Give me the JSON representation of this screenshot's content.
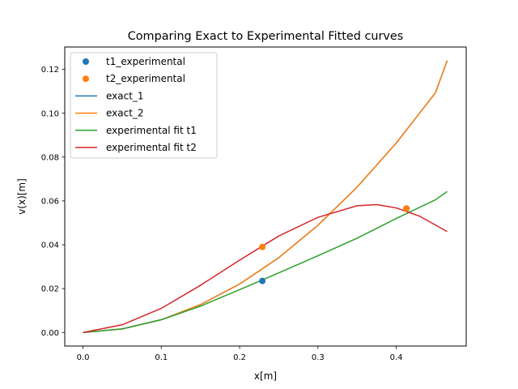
{
  "chart_data": {
    "type": "line",
    "title": "Comparing Exact to Experimental Fitted curves",
    "xlabel": "x[m]",
    "ylabel": "v(x)[m]",
    "xlim": [
      -0.0233,
      0.4893
    ],
    "ylim": [
      -0.0062,
      0.1302
    ],
    "xticks": [
      "0.0",
      "0.1",
      "0.2",
      "0.3",
      "0.4"
    ],
    "xtick_values": [
      0.0,
      0.1,
      0.2,
      0.3,
      0.4
    ],
    "yticks": [
      "0.00",
      "0.02",
      "0.04",
      "0.06",
      "0.08",
      "0.10",
      "0.12"
    ],
    "ytick_values": [
      0.0,
      0.02,
      0.04,
      0.06,
      0.08,
      0.1,
      0.12
    ],
    "grid": false,
    "legend_position": "top-left",
    "series": [
      {
        "name": "t1_experimental",
        "kind": "scatter",
        "color": "#1f77b4",
        "x": [
          0.229,
          0.413
        ],
        "y": [
          0.0235,
          0.0565
        ]
      },
      {
        "name": "t2_experimental",
        "kind": "scatter",
        "color": "#ff7f0e",
        "x": [
          0.229,
          0.413
        ],
        "y": [
          0.039,
          0.0565
        ]
      },
      {
        "name": "exact_1",
        "kind": "line",
        "color": "#1f77b4",
        "x": [
          0.0,
          0.05,
          0.1,
          0.15,
          0.2,
          0.25,
          0.3,
          0.35,
          0.4,
          0.45,
          0.465
        ],
        "y": [
          0.0,
          0.0016,
          0.0058,
          0.0127,
          0.0221,
          0.0341,
          0.0489,
          0.0663,
          0.0864,
          0.1093,
          0.124
        ]
      },
      {
        "name": "exact_2",
        "kind": "line",
        "color": "#ff7f0e",
        "x": [
          0.0,
          0.05,
          0.1,
          0.15,
          0.2,
          0.25,
          0.3,
          0.35,
          0.4,
          0.45,
          0.465
        ],
        "y": [
          0.0,
          0.0016,
          0.0058,
          0.0127,
          0.0221,
          0.0341,
          0.0489,
          0.0663,
          0.0864,
          0.1093,
          0.124
        ]
      },
      {
        "name": "experimental fit t1",
        "kind": "line",
        "color": "#2ca02c",
        "x": [
          0.0,
          0.05,
          0.1,
          0.15,
          0.2,
          0.25,
          0.3,
          0.35,
          0.4,
          0.45,
          0.465
        ],
        "y": [
          0.0,
          0.0016,
          0.0058,
          0.012,
          0.0195,
          0.0272,
          0.035,
          0.043,
          0.052,
          0.0605,
          0.0643
        ]
      },
      {
        "name": "experimental fit t2",
        "kind": "line",
        "color": "#d62728",
        "x": [
          0.0,
          0.05,
          0.1,
          0.15,
          0.2,
          0.25,
          0.3,
          0.35,
          0.375,
          0.4,
          0.43,
          0.465
        ],
        "y": [
          0.0,
          0.0035,
          0.011,
          0.0215,
          0.033,
          0.044,
          0.0525,
          0.0578,
          0.0583,
          0.0568,
          0.053,
          0.046
        ]
      }
    ]
  }
}
